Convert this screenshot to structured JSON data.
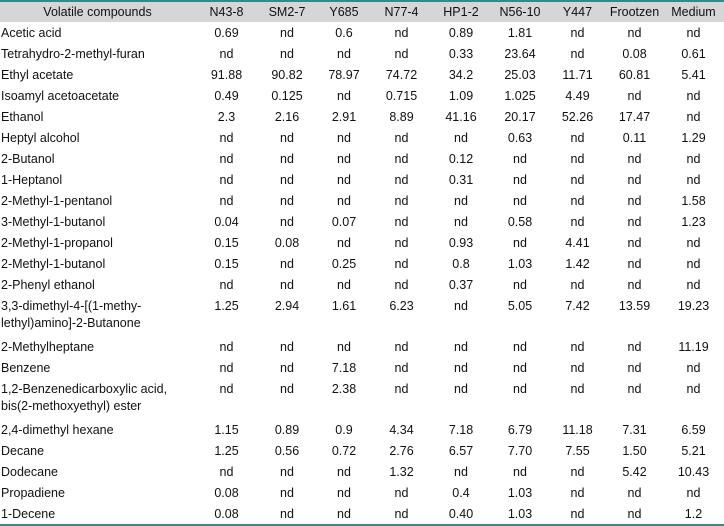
{
  "table": {
    "header": [
      "Volatile compounds",
      "N43-8",
      "SM2-7",
      "Y685",
      "N77-4",
      "HP1-2",
      "N56-10",
      "Y447",
      "Frootzen",
      "Medium"
    ],
    "rows": [
      [
        "Acetic acid",
        "0.69",
        "nd",
        "0.6",
        "nd",
        "0.89",
        "1.81",
        "nd",
        "nd",
        "nd"
      ],
      [
        "Tetrahydro-2-methyl-furan",
        "nd",
        "nd",
        "nd",
        "nd",
        "0.33",
        "23.64",
        "nd",
        "0.08",
        "0.61"
      ],
      [
        "Ethyl acetate",
        "91.88",
        "90.82",
        "78.97",
        "74.72",
        "34.2",
        "25.03",
        "11.71",
        "60.81",
        "5.41"
      ],
      [
        "Isoamyl acetoacetate",
        "0.49",
        "0.125",
        "nd",
        "0.715",
        "1.09",
        "1.025",
        "4.49",
        "nd",
        "nd"
      ],
      [
        "Ethanol",
        "2.3",
        "2.16",
        "2.91",
        "8.89",
        "41.16",
        "20.17",
        "52.26",
        "17.47",
        "nd"
      ],
      [
        "Heptyl alcohol",
        "nd",
        "nd",
        "nd",
        "nd",
        "nd",
        "0.63",
        "nd",
        "0.11",
        "1.29"
      ],
      [
        "2-Butanol",
        "nd",
        "nd",
        "nd",
        "nd",
        "0.12",
        "nd",
        "nd",
        "nd",
        "nd"
      ],
      [
        "1-Heptanol",
        "nd",
        "nd",
        "nd",
        "nd",
        "0.31",
        "nd",
        "nd",
        "nd",
        "nd"
      ],
      [
        "2-Methyl-1-pentanol",
        "nd",
        "nd",
        "nd",
        "nd",
        "nd",
        "nd",
        "nd",
        "nd",
        "1.58"
      ],
      [
        "3-Methyl-1-butanol",
        "0.04",
        "nd",
        "0.07",
        "nd",
        "nd",
        "0.58",
        "nd",
        "nd",
        "1.23"
      ],
      [
        "2-Methyl-1-propanol",
        "0.15",
        "0.08",
        "nd",
        "nd",
        "0.93",
        "nd",
        "4.41",
        "nd",
        "nd"
      ],
      [
        "2-Methyl-1-butanol",
        "0.15",
        "nd",
        "0.25",
        "nd",
        "0.8",
        "1.03",
        "1.42",
        "nd",
        "nd"
      ],
      [
        "2-Phenyl ethanol",
        "nd",
        "nd",
        "nd",
        "nd",
        "0.37",
        "nd",
        "nd",
        "nd",
        "nd"
      ],
      [
        "3,3-dimethyl-4-[(1-methy-lethyl)amino]-2-Butanone",
        "1.25",
        "2.94",
        "1.61",
        "6.23",
        "nd",
        "5.05",
        "7.42",
        "13.59",
        "19.23"
      ],
      [
        "2-Methylheptane",
        "nd",
        "nd",
        "nd",
        "nd",
        "nd",
        "nd",
        "nd",
        "nd",
        "11.19"
      ],
      [
        "Benzene",
        "nd",
        "nd",
        "7.18",
        "nd",
        "nd",
        "nd",
        "nd",
        "nd",
        "nd"
      ],
      [
        "1,2-Benzenedicarboxylic acid, bis(2-methoxyethyl) ester",
        "nd",
        "nd",
        "2.38",
        "nd",
        "nd",
        "nd",
        "nd",
        "nd",
        "nd"
      ],
      [
        "2,4-dimethyl hexane",
        "1.15",
        "0.89",
        "0.9",
        "4.34",
        "7.18",
        "6.79",
        "11.18",
        "7.31",
        "6.59"
      ],
      [
        "Decane",
        "1.25",
        "0.56",
        "0.72",
        "2.76",
        "6.57",
        "7.70",
        "7.55",
        "1.50",
        "5.21"
      ],
      [
        "Dodecane",
        "nd",
        "nd",
        "nd",
        "1.32",
        "nd",
        "nd",
        "nd",
        "5.42",
        "10.43"
      ],
      [
        "Propadiene",
        "0.08",
        "nd",
        "nd",
        "nd",
        "0.4",
        "1.03",
        "nd",
        "nd",
        "nd"
      ],
      [
        "1-Decene",
        "0.08",
        "nd",
        "nd",
        "nd",
        "0.40",
        "1.03",
        "nd",
        "nd",
        "1.2"
      ]
    ]
  }
}
